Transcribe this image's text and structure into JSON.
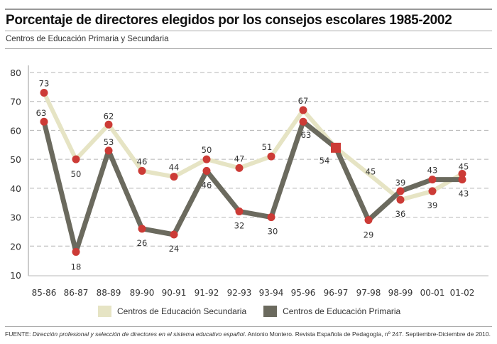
{
  "header": {
    "title": "Porcentaje de directores elegidos por los consejos escolares 1985-2002",
    "subtitle": "Centros de Educación Primaria y Secundaria"
  },
  "footer": {
    "source_prefix": "FUENTE: ",
    "source_italic": "Dirección profesional y selección de directores en el sistema educativo español",
    "source_rest": ". Antonio Montero. Revista Española de Pedagogía, nº 247. Septiembre-Diciembre de 2010."
  },
  "legend": {
    "items": [
      {
        "label": "Centros de Educación Secundaria",
        "color": "#e6e4c4"
      },
      {
        "label": "Centros de Educación Primaria",
        "color": "#6b6a5e"
      }
    ]
  },
  "chart_data": {
    "type": "line",
    "title": "Porcentaje de directores elegidos por los consejos escolares 1985-2002",
    "subtitle": "Centros de Educación Primaria y Secundaria",
    "xlabel": "",
    "ylabel": "",
    "categories": [
      "85-86",
      "86-87",
      "88-89",
      "89-90",
      "90-91",
      "91-92",
      "92-93",
      "93-94",
      "95-96",
      "96-97",
      "97-98",
      "98-99",
      "00-01",
      "01-02"
    ],
    "ylim": [
      10,
      80
    ],
    "yticks": [
      10,
      20,
      30,
      40,
      50,
      60,
      70,
      80
    ],
    "grid": true,
    "legend_position": "bottom",
    "marker_color": "#cc3b36",
    "series": [
      {
        "name": "Centros de Educación Secundaria",
        "color": "#e6e4c4",
        "values": [
          73,
          50,
          62,
          46,
          44,
          50,
          47,
          51,
          67,
          54,
          45,
          36,
          39,
          45
        ],
        "markers": [
          true,
          true,
          true,
          true,
          true,
          true,
          true,
          true,
          true,
          true,
          false,
          true,
          true,
          true
        ]
      },
      {
        "name": "Centros de Educación Primaria",
        "color": "#6b6a5e",
        "values": [
          63,
          18,
          53,
          26,
          24,
          46,
          32,
          30,
          63,
          54,
          29,
          39,
          43,
          43
        ],
        "markers": [
          true,
          true,
          true,
          true,
          true,
          true,
          true,
          true,
          true,
          true,
          true,
          true,
          true,
          true
        ]
      }
    ],
    "annotations": [
      {
        "text": "54",
        "category": "96-97",
        "note": "shared square marker for both series"
      }
    ]
  }
}
